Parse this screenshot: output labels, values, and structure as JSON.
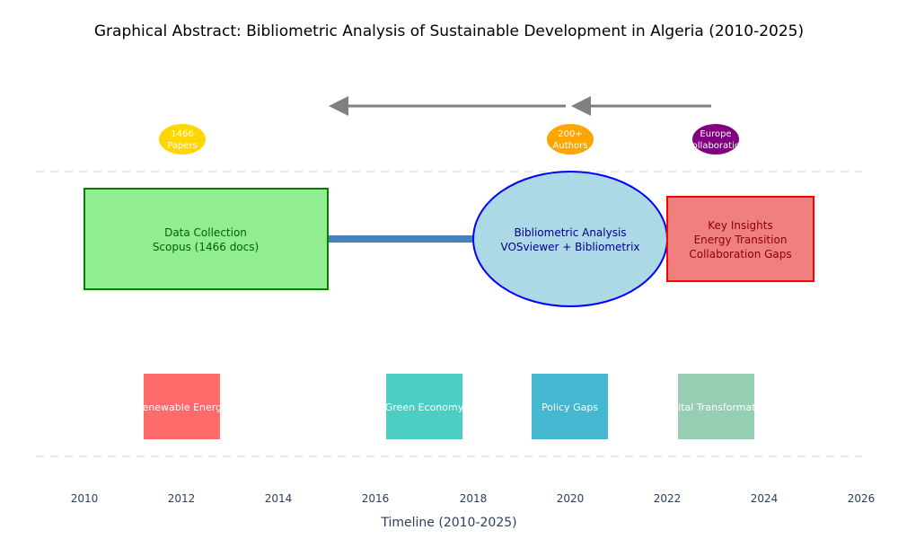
{
  "title": "Graphical Abstract: Bibliometric Analysis of Sustainable Development in Algeria (2010-2025)",
  "xaxis": {
    "title": "Timeline (2010-2025)",
    "range": [
      2010,
      2026
    ],
    "ticks": [
      "2010",
      "2012",
      "2014",
      "2016",
      "2018",
      "2020",
      "2022",
      "2024",
      "2026"
    ]
  },
  "badges": [
    {
      "line1": "1466",
      "line2": "Papers",
      "color": "#ffd700"
    },
    {
      "line1": "200+",
      "line2": "Authors",
      "color": "#ffa500"
    },
    {
      "line1": "Europe",
      "line2": "Collaboration",
      "color": "#800080"
    }
  ],
  "nodes": {
    "data_collection": {
      "line1": "Data Collection",
      "line2": "Scopus (1466 docs)",
      "fill": "#90ee90",
      "stroke": "#008000",
      "text": "#006400"
    },
    "bibliometric_analysis": {
      "line1": "Bibliometric Analysis",
      "line2": "VOSviewer + Bibliometrix",
      "fill": "#add8e6",
      "stroke": "#0000ff",
      "text": "#00008b"
    },
    "key_insights": {
      "line1": "Key Insights",
      "line2": "Energy Transition",
      "line3": "Collaboration Gaps",
      "fill": "#f08080",
      "stroke": "#ff0000",
      "text": "#8b0000"
    }
  },
  "themes": [
    {
      "label": "Renewable Energy",
      "color": "#ff6b6b"
    },
    {
      "label": "Green Economy",
      "color": "#4ecdc4"
    },
    {
      "label": "Policy Gaps",
      "color": "#45b7d1"
    },
    {
      "label": "Digital Transformation",
      "color": "#96ceb4"
    }
  ],
  "colors": {
    "connector": "#4682b4",
    "arrow": "#808080",
    "dashed": "#e8e8e8"
  }
}
